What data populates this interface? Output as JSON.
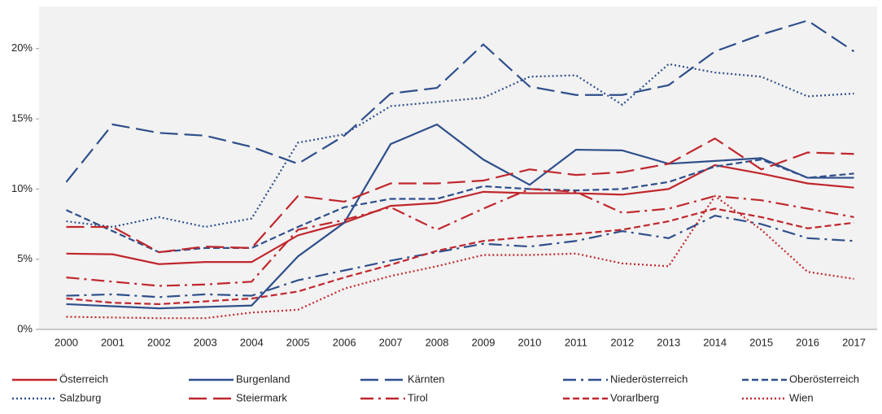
{
  "chart_data": {
    "type": "line",
    "categories": [
      "2000",
      "2001",
      "2002",
      "2003",
      "2004",
      "2005",
      "2006",
      "2007",
      "2008",
      "2009",
      "2010",
      "2011",
      "2012",
      "2013",
      "2014",
      "2015",
      "2016",
      "2017"
    ],
    "ylim": [
      0,
      23
    ],
    "yticks": [
      {
        "value": 0,
        "label": "0%"
      },
      {
        "value": 5,
        "label": "5%"
      },
      {
        "value": 10,
        "label": "10%"
      },
      {
        "value": 15,
        "label": "15%"
      },
      {
        "value": 20,
        "label": "20%"
      }
    ],
    "legend": "bottom",
    "series": [
      {
        "name": "Österreich",
        "color": "#c0272d",
        "style": "solid",
        "values": [
          5.4,
          5.35,
          4.65,
          4.8,
          4.8,
          6.7,
          7.6,
          8.8,
          9.0,
          9.8,
          9.7,
          9.7,
          9.6,
          10.0,
          11.7,
          11.1,
          10.4,
          10.1
        ]
      },
      {
        "name": "Burgenland",
        "color": "#2f4f8b",
        "style": "solid",
        "values": [
          1.8,
          1.65,
          1.5,
          1.6,
          1.7,
          5.2,
          7.6,
          13.2,
          14.6,
          12.1,
          10.3,
          12.8,
          12.75,
          11.8,
          12.0,
          12.2,
          10.8,
          10.8
        ]
      },
      {
        "name": "Kärnten",
        "color": "#2f4f8b",
        "style": "longdash",
        "values": [
          10.5,
          14.6,
          14.0,
          13.8,
          13.0,
          11.8,
          13.8,
          16.8,
          17.2,
          20.3,
          17.3,
          16.7,
          16.7,
          17.4,
          19.8,
          21.0,
          22.0,
          19.8
        ]
      },
      {
        "name": "Niederösterreich",
        "color": "#2f4f8b",
        "style": "dashdot",
        "values": [
          2.4,
          2.5,
          2.3,
          2.5,
          2.4,
          3.5,
          4.2,
          4.9,
          5.5,
          6.1,
          5.9,
          6.3,
          7.0,
          6.5,
          8.1,
          7.5,
          6.5,
          6.3
        ]
      },
      {
        "name": "Oberösterreich",
        "color": "#2f4f8b",
        "style": "dash",
        "values": [
          8.5,
          7.0,
          5.5,
          5.8,
          5.8,
          7.3,
          8.7,
          9.3,
          9.3,
          10.2,
          10.0,
          9.9,
          10.0,
          10.5,
          11.6,
          12.1,
          10.8,
          11.1
        ]
      },
      {
        "name": "Salzburg",
        "color": "#2f4f8b",
        "style": "dot",
        "values": [
          7.7,
          7.3,
          8.0,
          7.3,
          7.9,
          13.3,
          13.9,
          15.9,
          16.2,
          16.5,
          18.0,
          18.1,
          16.0,
          18.9,
          18.3,
          18.0,
          16.6,
          16.8
        ]
      },
      {
        "name": "Steiermark",
        "color": "#c0272d",
        "style": "longdash",
        "values": [
          7.3,
          7.3,
          5.5,
          5.9,
          5.8,
          9.5,
          9.1,
          10.4,
          10.4,
          10.6,
          11.4,
          11.0,
          11.2,
          11.8,
          13.6,
          11.4,
          12.6,
          12.5
        ]
      },
      {
        "name": "Tirol",
        "color": "#c0272d",
        "style": "dashdot",
        "values": [
          3.7,
          3.4,
          3.1,
          3.2,
          3.4,
          7.1,
          7.8,
          8.7,
          7.1,
          8.6,
          10.0,
          9.8,
          8.3,
          8.6,
          9.5,
          9.2,
          8.6,
          8.0
        ]
      },
      {
        "name": "Vorarlberg",
        "color": "#c0272d",
        "style": "dash",
        "values": [
          2.2,
          1.9,
          1.8,
          2.0,
          2.2,
          2.7,
          3.7,
          4.6,
          5.6,
          6.3,
          6.6,
          6.8,
          7.1,
          7.7,
          8.6,
          8.0,
          7.2,
          7.6
        ]
      },
      {
        "name": "Wien",
        "color": "#c0272d",
        "style": "dot",
        "values": [
          0.9,
          0.85,
          0.8,
          0.8,
          1.2,
          1.4,
          2.9,
          3.8,
          4.5,
          5.3,
          5.3,
          5.4,
          4.7,
          4.5,
          9.5,
          7.1,
          4.1,
          3.6
        ]
      }
    ]
  }
}
